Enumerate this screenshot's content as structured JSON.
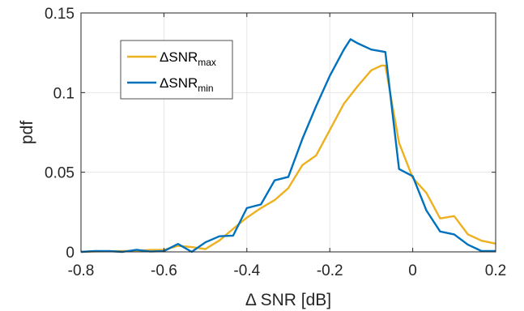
{
  "chart_data": {
    "type": "line",
    "xlabel": "Δ SNR [dB]",
    "ylabel": "pdf",
    "xlim": [
      -0.8,
      0.2
    ],
    "ylim": [
      0,
      0.15
    ],
    "x_ticks": [
      "-0.8",
      "-0.6",
      "-0.4",
      "-0.2",
      "0",
      "0.2"
    ],
    "y_ticks": [
      "0",
      "0.05",
      "0.1",
      "0.15"
    ],
    "grid": true,
    "legend_position": "top-left",
    "series": [
      {
        "name": "ΔSNR_max",
        "label_main": "ΔSNR",
        "label_sub": "max",
        "color": "#EDB120",
        "x": [
          -0.8,
          -0.766,
          -0.733,
          -0.7,
          -0.666,
          -0.633,
          -0.6,
          -0.566,
          -0.533,
          -0.5,
          -0.466,
          -0.433,
          -0.4,
          -0.366,
          -0.333,
          -0.3,
          -0.266,
          -0.233,
          -0.2,
          -0.166,
          -0.133,
          -0.1,
          -0.075,
          -0.066,
          -0.033,
          0,
          0.033,
          0.066,
          0.1,
          0.133,
          0.166,
          0.2
        ],
        "y": [
          0.0,
          0.0003,
          0.0004,
          0.0005,
          0.0006,
          0.0012,
          0.0012,
          0.0038,
          0.003,
          0.0018,
          0.0072,
          0.0145,
          0.0215,
          0.0275,
          0.0325,
          0.04,
          0.0545,
          0.0605,
          0.0765,
          0.093,
          0.104,
          0.114,
          0.117,
          0.117,
          0.0685,
          0.0465,
          0.037,
          0.021,
          0.0225,
          0.011,
          0.007,
          0.0052
        ]
      },
      {
        "name": "ΔSNR_min",
        "label_main": "ΔSNR",
        "label_sub": "min",
        "color": "#0072BD",
        "x": [
          -0.8,
          -0.766,
          -0.733,
          -0.7,
          -0.666,
          -0.633,
          -0.6,
          -0.566,
          -0.533,
          -0.5,
          -0.466,
          -0.433,
          -0.4,
          -0.366,
          -0.333,
          -0.3,
          -0.266,
          -0.233,
          -0.2,
          -0.166,
          -0.15,
          -0.133,
          -0.1,
          -0.066,
          -0.033,
          0,
          0.033,
          0.066,
          0.1,
          0.133,
          0.166,
          0.2
        ],
        "y": [
          0.0,
          0.0005,
          0.0005,
          0.0,
          0.0013,
          0.0002,
          0.0005,
          0.005,
          0.0,
          0.006,
          0.0098,
          0.0102,
          0.0275,
          0.0298,
          0.0449,
          0.0471,
          0.071,
          0.0915,
          0.1105,
          0.127,
          0.1335,
          0.131,
          0.127,
          0.1255,
          0.052,
          0.0475,
          0.026,
          0.0128,
          0.011,
          0.0045,
          0.0005,
          0.0005
        ]
      }
    ]
  }
}
